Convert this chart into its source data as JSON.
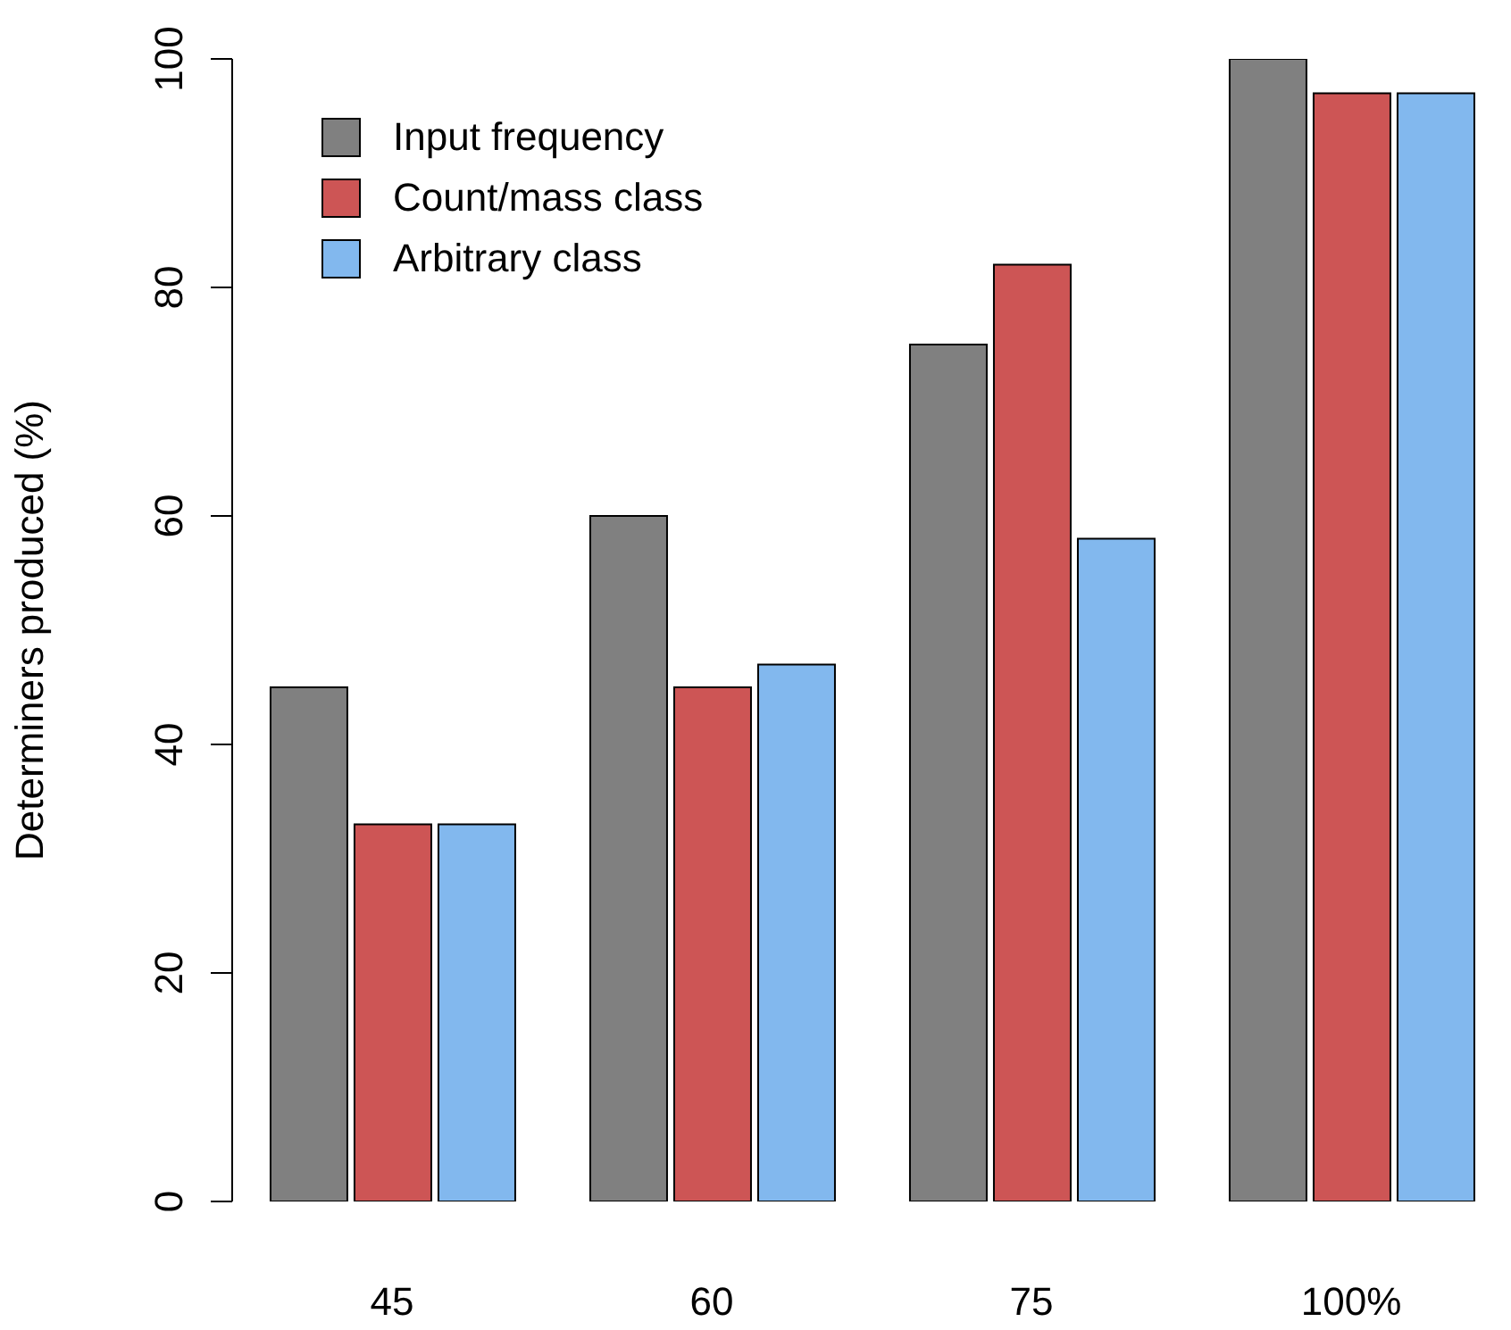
{
  "chart_data": {
    "type": "bar",
    "ylabel": "Determiners produced (%)",
    "categories": [
      "45",
      "60",
      "75",
      "100%"
    ],
    "series": [
      {
        "name": "Input frequency",
        "color": "#808080",
        "values": [
          45,
          60,
          75,
          100
        ]
      },
      {
        "name": "Count/mass class",
        "color": "#cd5555",
        "values": [
          33,
          45,
          82,
          97
        ]
      },
      {
        "name": "Arbitrary class",
        "color": "#82b8ee",
        "values": [
          33,
          47,
          58,
          97
        ]
      }
    ],
    "ylim": [
      0,
      100
    ],
    "yticks": [
      0,
      20,
      40,
      60,
      80,
      100
    ],
    "grid": false,
    "legend": "top left"
  }
}
